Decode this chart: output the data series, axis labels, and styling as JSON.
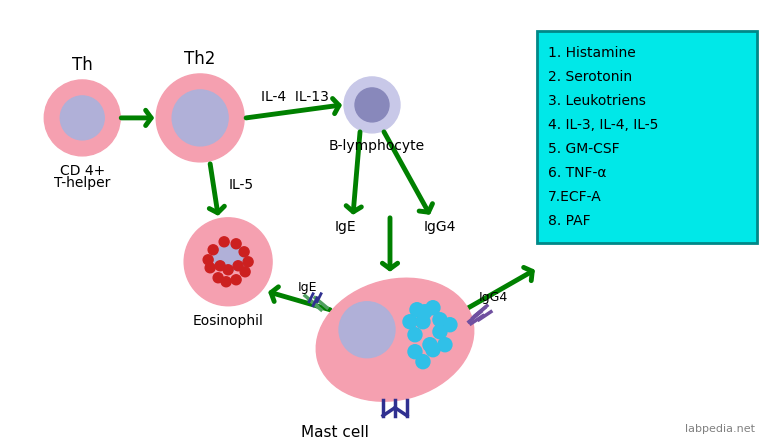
{
  "bg_color": "#ffffff",
  "box_bg": "#00e8e8",
  "box_edge": "#008888",
  "green": "#008000",
  "mediators": [
    "1. Histamine",
    "2. Serotonin",
    "3. Leukotriens",
    "4. IL-3, IL-4, IL-5",
    "5. GM-CSF",
    "6. TNF-α",
    "7.ECF-A",
    "8. PAF"
  ],
  "watermark": "labpedia.net",
  "cell_pink": "#f5a0b0",
  "cell_inner_pink": "#f0c0c8",
  "cell_purple": "#9090c0",
  "cell_lavender": "#b0b0d8",
  "cell_red_dots": "#cc2020",
  "cell_blue_dots": "#30c0e8",
  "ige_green": "#50a060",
  "igg4_purple": "#7050a0",
  "dark_blue_receptor": "#303090"
}
